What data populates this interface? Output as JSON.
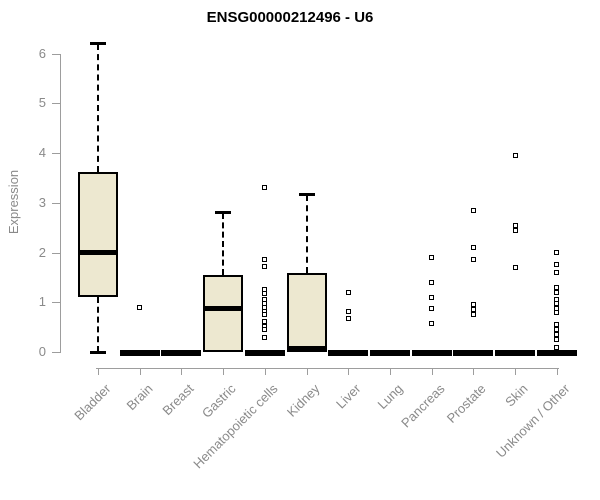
{
  "chart_data": {
    "type": "boxplot",
    "title": "ENSG00000212496 - U6",
    "xlabel": "",
    "ylabel": "Expression",
    "ylim": [
      0,
      6.3
    ],
    "y_ticks": [
      0,
      1,
      2,
      3,
      4,
      5,
      6
    ],
    "grid": false,
    "legend": false,
    "categories": [
      "Bladder",
      "Brain",
      "Breast",
      "Gastric",
      "Hematopoietic cells",
      "Kidney",
      "Liver",
      "Lung",
      "Pancreas",
      "Prostate",
      "Skin",
      "Unknown / Other"
    ],
    "series": [
      {
        "name": "Bladder",
        "whisker_low": 0,
        "q1": 1.1,
        "median": 2.0,
        "q3": 3.62,
        "whisker_high": 6.2,
        "outliers": []
      },
      {
        "name": "Brain",
        "whisker_low": 0,
        "q1": 0,
        "median": 0,
        "q3": 0,
        "whisker_high": 0,
        "outliers": [
          0.9
        ]
      },
      {
        "name": "Breast",
        "whisker_low": 0,
        "q1": 0,
        "median": 0,
        "q3": 0,
        "whisker_high": 0,
        "outliers": []
      },
      {
        "name": "Gastric",
        "whisker_low": 0,
        "q1": 0,
        "median": 0.87,
        "q3": 1.55,
        "whisker_high": 2.8,
        "outliers": []
      },
      {
        "name": "Hematopoietic cells",
        "whisker_low": 0,
        "q1": 0,
        "median": 0,
        "q3": 0,
        "whisker_high": 0,
        "outliers": [
          3.3,
          1.85,
          1.72,
          1.25,
          1.18,
          1.05,
          0.97,
          0.9,
          0.82,
          0.75,
          0.62,
          0.52,
          0.45,
          0.3
        ]
      },
      {
        "name": "Kidney",
        "whisker_low": 0,
        "q1": 0,
        "median": 0,
        "q3": 1.58,
        "whisker_high": 3.15,
        "outliers": []
      },
      {
        "name": "Liver",
        "whisker_low": 0,
        "q1": 0,
        "median": 0,
        "q3": 0,
        "whisker_high": 0,
        "outliers": [
          1.2,
          0.82,
          0.68
        ]
      },
      {
        "name": "Lung",
        "whisker_low": 0,
        "q1": 0,
        "median": 0,
        "q3": 0,
        "whisker_high": 0,
        "outliers": []
      },
      {
        "name": "Pancreas",
        "whisker_low": 0,
        "q1": 0,
        "median": 0,
        "q3": 0,
        "whisker_high": 0,
        "outliers": [
          1.9,
          1.4,
          1.1,
          0.88,
          0.58
        ]
      },
      {
        "name": "Prostate",
        "whisker_low": 0,
        "q1": 0,
        "median": 0,
        "q3": 0,
        "whisker_high": 0,
        "outliers": [
          2.85,
          2.1,
          1.85,
          0.95,
          0.85,
          0.75
        ]
      },
      {
        "name": "Skin",
        "whisker_low": 0,
        "q1": 0,
        "median": 0,
        "q3": 0,
        "whisker_high": 0,
        "outliers": [
          3.95,
          2.55,
          2.45,
          1.7
        ]
      },
      {
        "name": "Unknown / Other",
        "whisker_low": 0,
        "q1": 0,
        "median": 0,
        "q3": 0,
        "whisker_high": 0,
        "outliers": [
          2.0,
          1.75,
          1.6,
          1.3,
          1.2,
          1.05,
          0.97,
          0.88,
          0.8,
          0.55,
          0.45,
          0.35,
          0.25,
          0.1
        ]
      }
    ],
    "colors": {
      "box_fill": "#EDE8D0",
      "box_border": "#000000",
      "median": "#000000",
      "axis": "#9d9d9d",
      "tick_text": "#8a8a8a",
      "title_text": "#000000"
    }
  }
}
